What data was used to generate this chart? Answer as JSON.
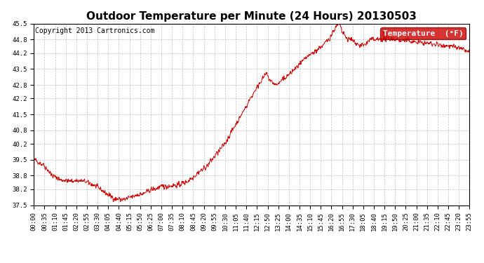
{
  "title": "Outdoor Temperature per Minute (24 Hours) 20130503",
  "copyright_text": "Copyright 2013 Cartronics.com",
  "legend_label": "Temperature  (°F)",
  "legend_bg": "#cc0000",
  "legend_fg": "#ffffff",
  "line_color": "#cc0000",
  "background_color": "#ffffff",
  "grid_color": "#bbbbbb",
  "ylim": [
    37.5,
    45.5
  ],
  "yticks": [
    37.5,
    38.2,
    38.8,
    39.5,
    40.2,
    40.8,
    41.5,
    42.2,
    42.8,
    43.5,
    44.2,
    44.8,
    45.5
  ],
  "xtick_labels": [
    "00:00",
    "00:35",
    "01:10",
    "01:45",
    "02:20",
    "02:55",
    "03:30",
    "04:05",
    "04:40",
    "05:15",
    "05:50",
    "06:25",
    "07:00",
    "07:35",
    "08:10",
    "08:45",
    "09:20",
    "09:55",
    "10:30",
    "11:05",
    "11:40",
    "12:15",
    "12:50",
    "13:25",
    "14:00",
    "14:35",
    "15:10",
    "15:45",
    "16:20",
    "16:55",
    "17:30",
    "18:05",
    "18:40",
    "19:15",
    "19:50",
    "20:25",
    "21:00",
    "21:35",
    "22:10",
    "22:45",
    "23:20",
    "23:55"
  ],
  "title_fontsize": 11,
  "copyright_fontsize": 7,
  "tick_fontsize": 6.5,
  "legend_fontsize": 8
}
